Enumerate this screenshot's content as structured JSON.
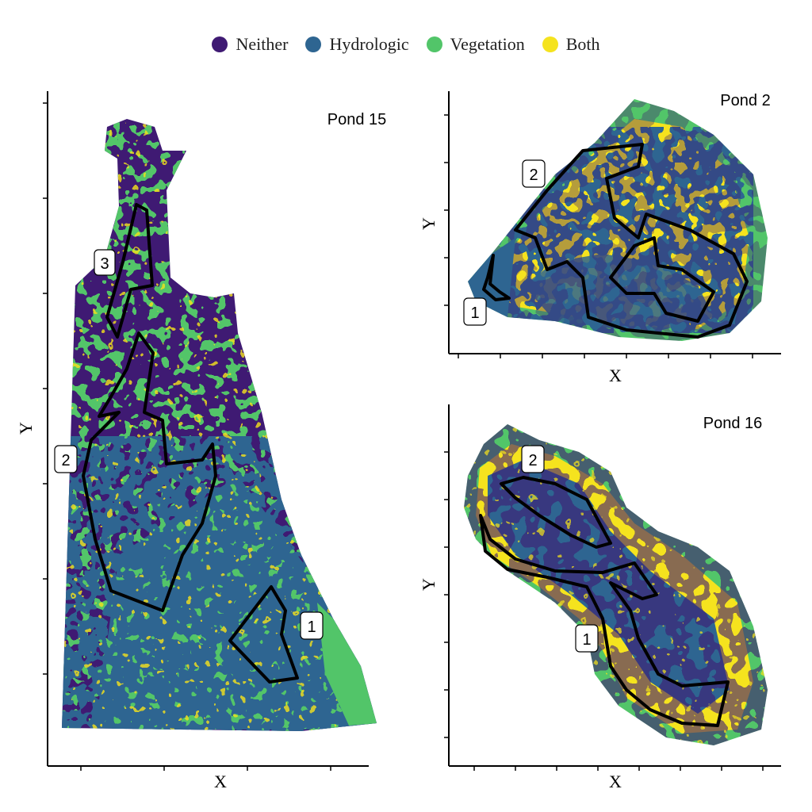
{
  "legend": {
    "items": [
      {
        "key": "neither",
        "label": "Neither",
        "color": "#3f1a73"
      },
      {
        "key": "hydrologic",
        "label": "Hydrologic",
        "color": "#2e6591"
      },
      {
        "key": "vegetation",
        "label": "Vegetation",
        "color": "#52c569"
      },
      {
        "key": "both",
        "label": "Both",
        "color": "#f5e31e"
      }
    ]
  },
  "panels": {
    "pond15": {
      "title": "Pond 15",
      "xlabel": "X",
      "ylabel": "Y",
      "zone_labels": [
        "1",
        "2",
        "3"
      ]
    },
    "pond2": {
      "title": "Pond 2",
      "xlabel": "X",
      "ylabel": "Y",
      "zone_labels": [
        "1",
        "2"
      ]
    },
    "pond16": {
      "title": "Pond 16",
      "xlabel": "X",
      "ylabel": "Y",
      "zone_labels": [
        "1",
        "2"
      ]
    }
  }
}
